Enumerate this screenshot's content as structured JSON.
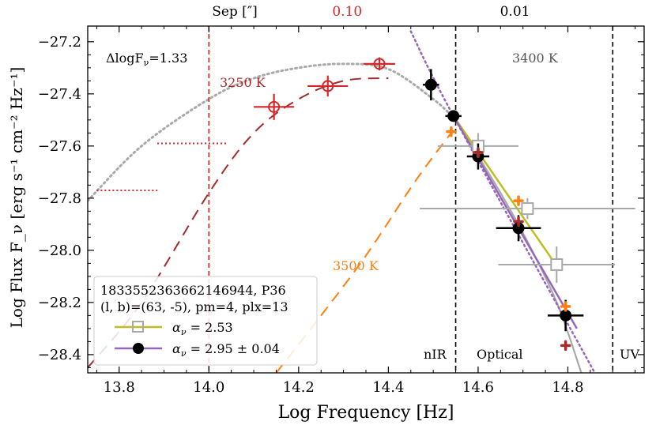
{
  "chart_data": {
    "type": "scatter",
    "xlabel": "Log Frequency [Hz]",
    "ylabel": "Log Flux F_ν [erg s⁻¹ cm⁻² Hz⁻¹]",
    "xlim": [
      13.73,
      14.97
    ],
    "ylim": [
      -28.47,
      -27.14
    ],
    "x_ticks": [
      13.8,
      14.0,
      14.2,
      14.4,
      14.6,
      14.8
    ],
    "x_tick_labels": [
      "13.8",
      "14.0",
      "14.2",
      "14.4",
      "14.6",
      "14.8"
    ],
    "y_ticks": [
      -27.2,
      -27.4,
      -27.6,
      -27.8,
      -28.0,
      -28.2,
      -28.4
    ],
    "y_tick_labels": [
      "−27.2",
      "−27.4",
      "−27.6",
      "−27.8",
      "−28.0",
      "−28.2",
      "−28.4"
    ],
    "top_axis": {
      "label": "Sep [″]",
      "labels": [
        {
          "text": "0.10",
          "x": 14.0,
          "color": "#d62728"
        },
        {
          "text": "0.01",
          "x": 14.55,
          "color": "#000000"
        }
      ]
    },
    "annotations": {
      "delta": "ΔlogF",
      "delta_sub": "ν",
      "delta_value": "=1.33",
      "temp_3250": "3250 K",
      "temp_3400": "3400 K",
      "temp_3500": "3500 K",
      "region_nir": "nIR",
      "region_optical": "Optical",
      "region_uv": "UV"
    },
    "legend": {
      "line1": "1833552363662146944, P36",
      "line2": "(l, b)=(63, -5), pm=4, plx=13",
      "entry1_label": "α",
      "entry1_sub": "ν",
      "entry1_value": " =  2.53",
      "entry2_label": "α",
      "entry2_sub": "ν",
      "entry2_value": " = 2.95 ± 0.04"
    },
    "vertical_lines": [
      {
        "x": 14.0,
        "color": "#d62728",
        "style": "dashed"
      },
      {
        "x": 14.55,
        "color": "#000000",
        "style": "dashed"
      },
      {
        "x": 14.9,
        "color": "#000000",
        "style": "dashed"
      }
    ],
    "series": [
      {
        "name": "red open circles",
        "color": "#d62728",
        "points": [
          {
            "x": 14.145,
            "y": -27.45,
            "xerr": 0.045,
            "yerr": 0.05
          },
          {
            "x": 14.265,
            "y": -27.37,
            "xerr": 0.045,
            "yerr": 0.04
          },
          {
            "x": 14.38,
            "y": -27.285,
            "xerr": 0.035,
            "yerr": 0.025
          }
        ]
      },
      {
        "name": "red upper limits",
        "color": "#d62728",
        "segments": [
          {
            "x1": 13.75,
            "x2": 13.885,
            "y": -27.77
          },
          {
            "x1": 13.885,
            "x2": 14.04,
            "y": -27.59
          }
        ]
      },
      {
        "name": "black filled circles",
        "color": "#000000",
        "points": [
          {
            "x": 14.495,
            "y": -27.365,
            "xerr": 0.018,
            "yerr": 0.06
          },
          {
            "x": 14.545,
            "y": -27.485,
            "xerr": 0.018,
            "yerr": 0.02
          },
          {
            "x": 14.6,
            "y": -27.64,
            "xerr": 0.025,
            "yerr": 0.05
          },
          {
            "x": 14.69,
            "y": -27.915,
            "xerr": 0.05,
            "yerr": 0.05
          },
          {
            "x": 14.795,
            "y": -28.25,
            "xerr": 0.04,
            "yerr": 0.06
          }
        ]
      },
      {
        "name": "gray open squares",
        "color": "#a9a9a9",
        "points": [
          {
            "x": 14.6,
            "y": -27.6,
            "xerr": 0.09,
            "yerr": 0.05
          },
          {
            "x": 14.71,
            "y": -27.84,
            "xerr": 0.24,
            "yerr": 0.04
          },
          {
            "x": 14.775,
            "y": -28.055,
            "xerr": 0.13,
            "yerr": 0.07
          }
        ]
      },
      {
        "name": "orange markers",
        "color": "#ff7f0e",
        "points": [
          {
            "x": 14.54,
            "y": -27.545
          },
          {
            "x": 14.6,
            "y": -27.625
          },
          {
            "x": 14.69,
            "y": -27.81
          },
          {
            "x": 14.795,
            "y": -28.215
          }
        ]
      },
      {
        "name": "dark red markers",
        "color": "#a52a2a",
        "points": [
          {
            "x": 14.6,
            "y": -27.625
          },
          {
            "x": 14.69,
            "y": -27.89
          },
          {
            "x": 14.795,
            "y": -28.365
          }
        ]
      },
      {
        "name": "gray dotted blackbody",
        "color": "#a9a9a9",
        "points": [
          [
            13.73,
            -27.81
          ],
          [
            13.85,
            -27.6
          ],
          [
            14.0,
            -27.42
          ],
          [
            14.1,
            -27.34
          ],
          [
            14.2,
            -27.3
          ],
          [
            14.3,
            -27.285
          ],
          [
            14.4,
            -27.305
          ],
          [
            14.5,
            -27.42
          ],
          [
            14.55,
            -27.5
          ]
        ]
      },
      {
        "name": "3250 K model (dark red dashed)",
        "color": "#a52a2a",
        "points": [
          [
            13.73,
            -28.45
          ],
          [
            13.85,
            -28.2
          ],
          [
            14.0,
            -27.78
          ],
          [
            14.1,
            -27.55
          ],
          [
            14.2,
            -27.42
          ],
          [
            14.3,
            -27.35
          ],
          [
            14.4,
            -27.34
          ]
        ]
      },
      {
        "name": "3500 K model (orange dashed)",
        "color": "#ff7f0e",
        "points": [
          [
            14.15,
            -28.47
          ],
          [
            14.25,
            -28.25
          ],
          [
            14.35,
            -28.02
          ],
          [
            14.45,
            -27.76
          ],
          [
            14.5,
            -27.64
          ],
          [
            14.54,
            -27.55
          ]
        ]
      },
      {
        "name": "alpha 2.53 fit",
        "color": "#bcbd22",
        "points": [
          [
            14.545,
            -27.485
          ],
          [
            14.775,
            -28.06
          ]
        ]
      },
      {
        "name": "alpha 2.95 fit",
        "color": "#9467bd",
        "points": [
          [
            14.545,
            -27.485
          ],
          [
            14.82,
            -28.3
          ]
        ]
      },
      {
        "name": "alpha 2.95 extension (dotted)",
        "color": "#9467bd",
        "points": [
          [
            14.45,
            -27.16
          ],
          [
            14.545,
            -27.485
          ],
          [
            14.86,
            -28.47
          ]
        ]
      },
      {
        "name": "gray solid model",
        "color": "#a9a9a9",
        "points": [
          [
            14.545,
            -27.485
          ],
          [
            14.65,
            -27.78
          ],
          [
            14.72,
            -28.0
          ],
          [
            14.78,
            -28.22
          ],
          [
            14.83,
            -28.47
          ]
        ]
      }
    ]
  }
}
